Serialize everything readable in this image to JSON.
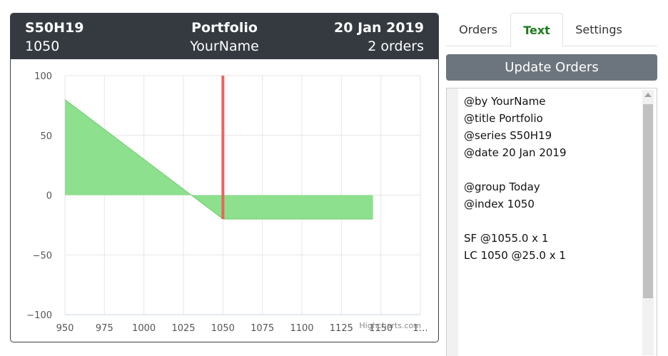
{
  "header": {
    "series": "S50H19",
    "title": "Portfolio",
    "date": "20 Jan 2019",
    "index": "1050",
    "author": "YourName",
    "order_count": "2 orders"
  },
  "chart_data": {
    "type": "area",
    "x": [
      950,
      1030,
      1050,
      1145
    ],
    "values": [
      80,
      0,
      -20,
      -20
    ],
    "xlim": [
      950,
      1175
    ],
    "ylim": [
      -100,
      100
    ],
    "x_ticks": [
      "950",
      "975",
      "1000",
      "1025",
      "1050",
      "1075",
      "1100",
      "1125",
      "1150",
      "1…"
    ],
    "y_ticks": [
      "100",
      "50",
      "0",
      "−50",
      "−100"
    ],
    "marker_x": 1050,
    "colors": {
      "area": "#8de08d",
      "area_line": "#6ccf6c",
      "marker": "#f0625c",
      "grid": "#e6e6e6"
    },
    "credit": "Highcharts.com"
  },
  "tabs": [
    {
      "label": "Orders",
      "active": false
    },
    {
      "label": "Text",
      "active": true
    },
    {
      "label": "Settings",
      "active": false
    }
  ],
  "update_button": "Update Orders",
  "editor": {
    "text": "@by YourName\n@title Portfolio\n@series S50H19\n@date 20 Jan 2019\n\n@group Today\n@index 1050\n\nSF @1055.0 x 1\nLC 1050 @25.0 x 1"
  }
}
